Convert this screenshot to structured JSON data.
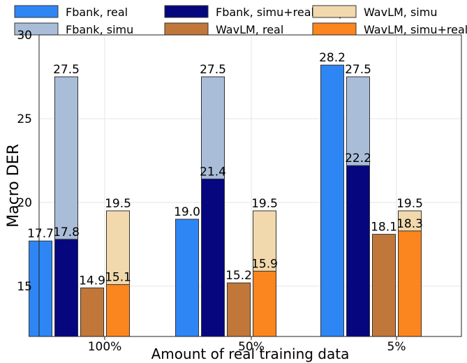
{
  "chart_data": {
    "type": "bar",
    "title": "",
    "xlabel": "Amount of real training data",
    "ylabel": "Macro DER",
    "ylim": [
      12,
      30
    ],
    "yticks": [
      15,
      20,
      25,
      30
    ],
    "grid": true,
    "legend_position": "top",
    "categories": [
      "100%",
      "50%",
      "5%"
    ],
    "series": [
      {
        "name": "Fbank, real",
        "color": "#2E86F5",
        "values": [
          17.7,
          19.0,
          28.2
        ],
        "labels": [
          "17.7",
          "19.0",
          "28.2"
        ]
      },
      {
        "name": "Fbank, simu",
        "color": "#A9BDD9",
        "values": [
          27.5,
          27.5,
          27.5
        ],
        "labels": [
          "27.5",
          "27.5",
          "27.5"
        ]
      },
      {
        "name": "Fbank, simu+real adapt",
        "color": "#06067F",
        "values": [
          17.8,
          21.4,
          22.2
        ],
        "labels": [
          "17.8",
          "21.4",
          "22.2"
        ]
      },
      {
        "name": "WavLM, real",
        "color": "#C2773A",
        "values": [
          14.9,
          15.2,
          18.1
        ],
        "labels": [
          "14.9",
          "15.2",
          "18.1"
        ]
      },
      {
        "name": "WavLM, simu",
        "color": "#F1D9AD",
        "values": [
          19.5,
          19.5,
          19.5
        ],
        "labels": [
          "19.5",
          "19.5",
          "19.5"
        ]
      },
      {
        "name": "WavLM, simu+real adapt",
        "color": "#FB851E",
        "values": [
          15.1,
          15.9,
          18.3
        ],
        "labels": [
          "15.1",
          "15.9",
          "18.3"
        ]
      }
    ]
  }
}
